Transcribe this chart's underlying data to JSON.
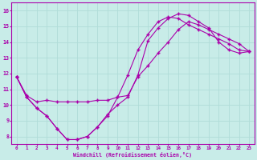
{
  "xlabel": "Windchill (Refroidissement éolien,°C)",
  "xlim": [
    -0.5,
    23.5
  ],
  "ylim": [
    7.5,
    16.5
  ],
  "xticks": [
    0,
    1,
    2,
    3,
    4,
    5,
    6,
    7,
    8,
    9,
    10,
    11,
    12,
    13,
    14,
    15,
    16,
    17,
    18,
    19,
    20,
    21,
    22,
    23
  ],
  "yticks": [
    8,
    9,
    10,
    11,
    12,
    13,
    14,
    15,
    16
  ],
  "bg_color": "#c8ece8",
  "line_color": "#aa00aa",
  "grid_color": "#b0dcd8",
  "line1_x": [
    0,
    1,
    2,
    3,
    4,
    5,
    6,
    7,
    8,
    9,
    10,
    11,
    12,
    13,
    14,
    15,
    16,
    17,
    18,
    19,
    20,
    21,
    22,
    23
  ],
  "line1_y": [
    11.8,
    10.5,
    9.8,
    9.3,
    8.5,
    7.8,
    7.8,
    8.0,
    8.6,
    9.4,
    10.0,
    10.5,
    11.9,
    14.1,
    14.9,
    15.5,
    15.8,
    15.7,
    15.3,
    14.9,
    14.0,
    13.5,
    13.3,
    13.4
  ],
  "line2_x": [
    0,
    1,
    2,
    3,
    4,
    5,
    6,
    7,
    8,
    9,
    10,
    11,
    12,
    13,
    14,
    15,
    16,
    17,
    18,
    19,
    20,
    21,
    22,
    23
  ],
  "line2_y": [
    11.8,
    10.6,
    10.2,
    10.3,
    10.2,
    10.2,
    10.2,
    10.2,
    10.3,
    10.3,
    10.5,
    10.6,
    11.8,
    12.5,
    13.3,
    14.0,
    14.8,
    15.3,
    15.1,
    14.8,
    14.5,
    14.2,
    13.9,
    13.4
  ],
  "line3_x": [
    0,
    1,
    2,
    3,
    4,
    5,
    6,
    7,
    8,
    9,
    10,
    11,
    12,
    13,
    14,
    15,
    16,
    17,
    18,
    19,
    20,
    21,
    22,
    23
  ],
  "line3_y": [
    11.8,
    10.5,
    9.8,
    9.3,
    8.5,
    7.8,
    7.8,
    8.0,
    8.6,
    9.3,
    10.5,
    11.9,
    13.5,
    14.5,
    15.3,
    15.6,
    15.5,
    15.1,
    14.8,
    14.5,
    14.2,
    13.9,
    13.5,
    13.4
  ]
}
